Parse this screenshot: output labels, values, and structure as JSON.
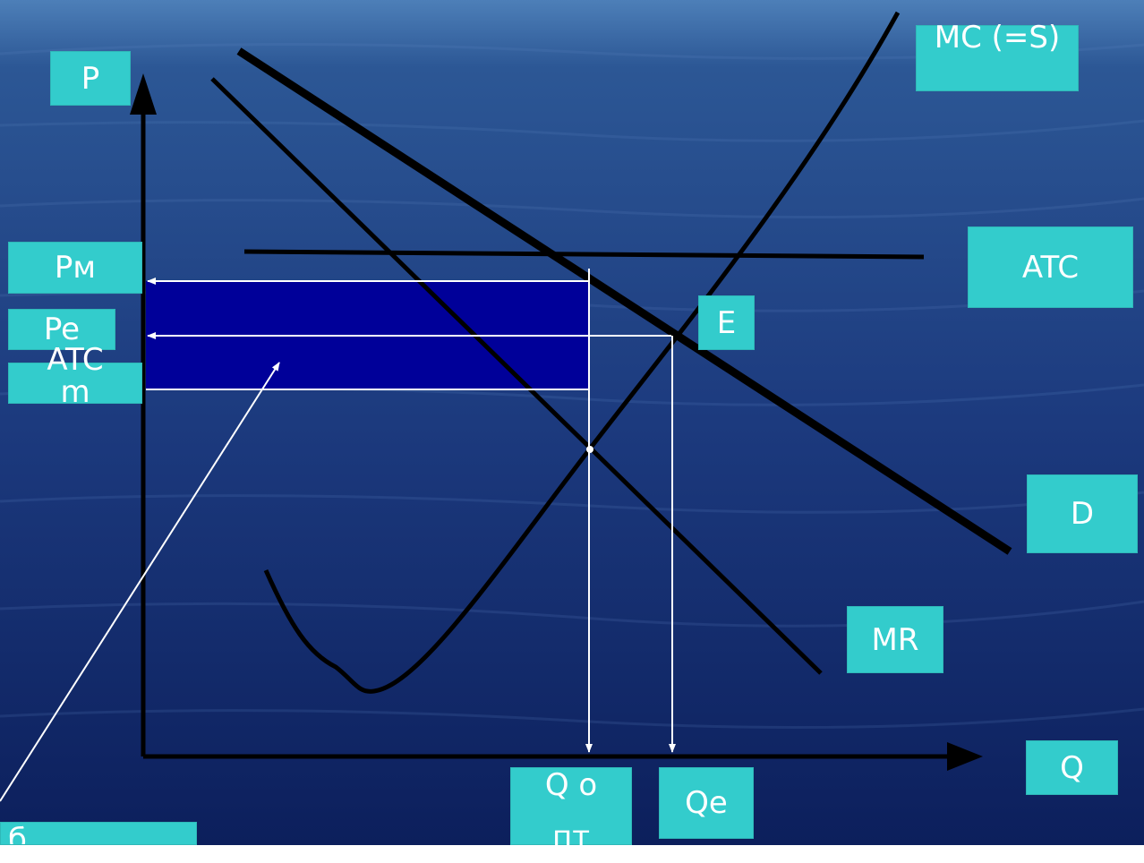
{
  "colors": {
    "background_top": "#2a4f8c",
    "background_bottom": "#0f2462",
    "label_box": "#33cccc",
    "label_text": "#ffffff",
    "curve": "#000000",
    "profit_area": "#000099",
    "guide_line": "#ffffff"
  },
  "labels": {
    "p_axis": "P",
    "q_axis": "Q",
    "mc": "MC (=S)",
    "atc": "ATC",
    "d": "D",
    "mr": "MR",
    "e": "E",
    "pm": "Pм",
    "pe": "Pe",
    "atcm": "ATCm",
    "q_opt": "Q опт",
    "qe": "Qe",
    "profit_box": "б"
  }
}
